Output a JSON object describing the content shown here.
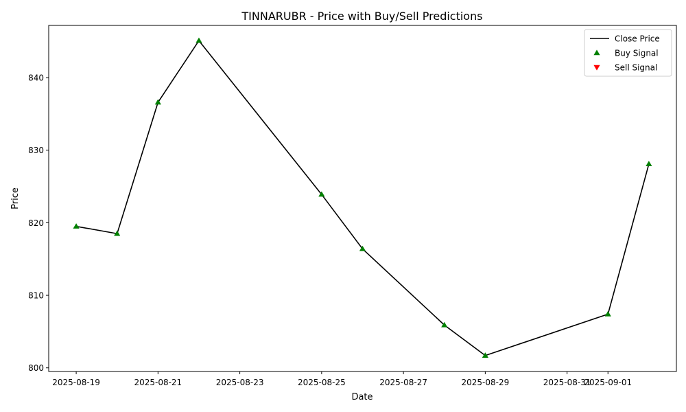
{
  "chart_data": {
    "type": "line",
    "title": "TINNARUBR - Price with Buy/Sell Predictions",
    "xlabel": "Date",
    "ylabel": "Price",
    "x_ticks": [
      "2025-08-19",
      "2025-08-21",
      "2025-08-23",
      "2025-08-25",
      "2025-08-27",
      "2025-08-29",
      "2025-08-31",
      "2025-09-01"
    ],
    "y_ticks": [
      800,
      810,
      820,
      830,
      840
    ],
    "xlim": [
      "2025-08-18T07:52",
      "2025-09-02T16:09"
    ],
    "ylim": [
      799.5,
      847.2
    ],
    "grid": false,
    "legend_position": "top-right",
    "legend": [
      "Close Price",
      "Buy Signal",
      "Sell Signal"
    ],
    "series": [
      {
        "name": "Close Price",
        "kind": "line",
        "color": "#000000",
        "x": [
          "2025-08-19",
          "2025-08-20",
          "2025-08-21",
          "2025-08-22",
          "2025-08-25",
          "2025-08-26",
          "2025-08-28",
          "2025-08-29",
          "2025-09-01",
          "2025-09-02"
        ],
        "y": [
          819.5,
          818.5,
          836.6,
          845.1,
          823.9,
          816.4,
          805.9,
          801.7,
          807.4,
          828.1
        ]
      },
      {
        "name": "Buy Signal",
        "kind": "scatter",
        "marker": "triangle-up",
        "color": "#008000",
        "x": [
          "2025-08-19",
          "2025-08-20",
          "2025-08-21",
          "2025-08-22",
          "2025-08-25",
          "2025-08-26",
          "2025-08-28",
          "2025-08-29",
          "2025-09-01",
          "2025-09-02"
        ],
        "y": [
          819.5,
          818.5,
          836.6,
          845.1,
          823.9,
          816.4,
          805.9,
          801.7,
          807.4,
          828.1
        ]
      },
      {
        "name": "Sell Signal",
        "kind": "scatter",
        "marker": "triangle-down",
        "color": "#ff0000",
        "x": [],
        "y": []
      }
    ]
  }
}
